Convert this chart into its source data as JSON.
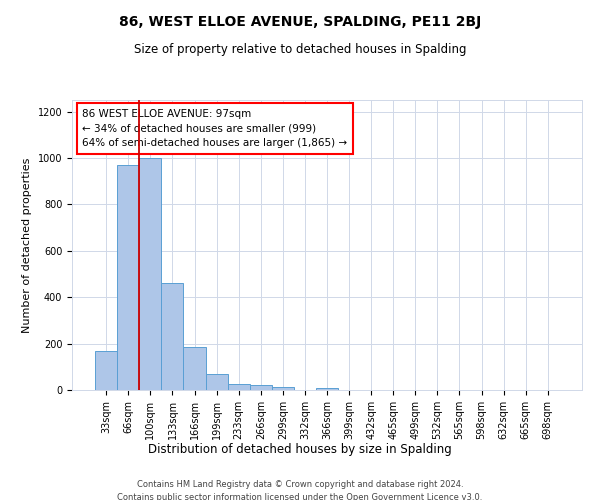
{
  "title": "86, WEST ELLOE AVENUE, SPALDING, PE11 2BJ",
  "subtitle": "Size of property relative to detached houses in Spalding",
  "xlabel": "Distribution of detached houses by size in Spalding",
  "ylabel": "Number of detached properties",
  "bar_labels": [
    "33sqm",
    "66sqm",
    "100sqm",
    "133sqm",
    "166sqm",
    "199sqm",
    "233sqm",
    "266sqm",
    "299sqm",
    "332sqm",
    "366sqm",
    "399sqm",
    "432sqm",
    "465sqm",
    "499sqm",
    "532sqm",
    "565sqm",
    "598sqm",
    "632sqm",
    "665sqm",
    "698sqm"
  ],
  "bar_values": [
    170,
    970,
    1000,
    460,
    185,
    70,
    25,
    20,
    15,
    0,
    10,
    0,
    0,
    0,
    0,
    0,
    0,
    0,
    0,
    0,
    0
  ],
  "bar_color": "#aec6e8",
  "bar_edge_color": "#5a9fd4",
  "highlight_bar_index": 2,
  "highlight_color": "#cc0000",
  "ylim": [
    0,
    1250
  ],
  "yticks": [
    0,
    200,
    400,
    600,
    800,
    1000,
    1200
  ],
  "annotation_line1": "86 WEST ELLOE AVENUE: 97sqm",
  "annotation_line2": "← 34% of detached houses are smaller (999)",
  "annotation_line3": "64% of semi-detached houses are larger (1,865) →",
  "footer_line1": "Contains HM Land Registry data © Crown copyright and database right 2024.",
  "footer_line2": "Contains public sector information licensed under the Open Government Licence v3.0.",
  "background_color": "#ffffff",
  "grid_color": "#d0d8e8",
  "title_fontsize": 10,
  "subtitle_fontsize": 8.5,
  "ylabel_fontsize": 8,
  "xlabel_fontsize": 8.5,
  "tick_fontsize": 7,
  "annot_fontsize": 7.5,
  "footer_fontsize": 6
}
